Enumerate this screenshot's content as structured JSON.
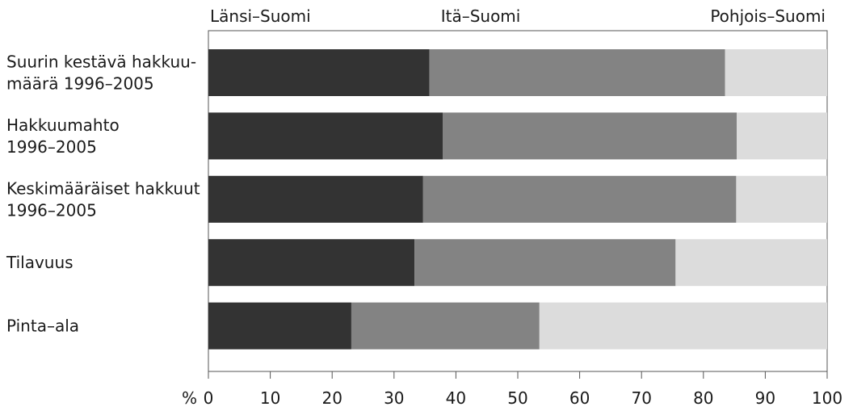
{
  "chart_data": {
    "type": "bar",
    "orientation": "horizontal",
    "stacked": true,
    "categories": [
      [
        "Suurin kestävä hakkuu-",
        "määrä 1996–2005"
      ],
      [
        "Hakkuumahto",
        "1996–2005"
      ],
      [
        "Keskimääräiset hakkuut",
        "1996–2005"
      ],
      [
        "Tilavuus"
      ],
      [
        "Pinta–ala"
      ]
    ],
    "series": [
      {
        "name": "Länsi–Suomi",
        "color": "#333333",
        "values": [
          35.7,
          37.9,
          34.7,
          33.3,
          23.1
        ]
      },
      {
        "name": "Itä–Suomi",
        "color": "#838383",
        "values": [
          47.8,
          47.5,
          50.6,
          42.2,
          30.4
        ]
      },
      {
        "name": "Pohjois–Suomi",
        "color": "#dcdcdc",
        "values": [
          16.5,
          14.6,
          14.7,
          24.5,
          46.5
        ]
      }
    ],
    "xlim": [
      0,
      100
    ],
    "xticks": [
      0,
      10,
      20,
      30,
      40,
      50,
      60,
      70,
      80,
      90,
      100
    ],
    "xunit": "%",
    "legend_position": "top",
    "grid": false
  }
}
